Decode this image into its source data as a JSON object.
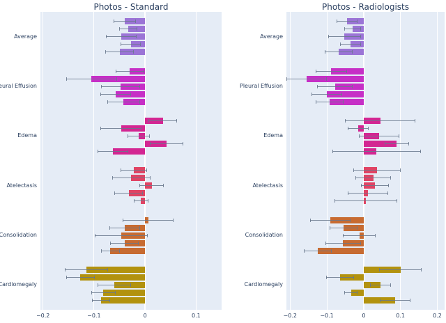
{
  "style": {
    "plot_bg": "#e5ecf6",
    "grid_color": "#ffffff",
    "text_color": "#2a3f5f",
    "error_color": "#69788c"
  },
  "chart_data": [
    {
      "type": "bar",
      "orientation": "horizontal",
      "title": "Photos - Standard",
      "xlabel": "",
      "ylabel": "",
      "xlim": [
        -0.205,
        0.15
      ],
      "grid": true,
      "legend": false,
      "xticks": [
        {
          "v": -0.2,
          "label": "−0.2"
        },
        {
          "v": -0.1,
          "label": "−0.1"
        },
        {
          "v": 0,
          "label": "0"
        },
        {
          "v": 0.1,
          "label": "0.1"
        }
      ],
      "groups": [
        {
          "label": "Average",
          "color": "#9b74d6",
          "bars": [
            {
              "value": -0.04,
              "error": 0.022
            },
            {
              "value": -0.033,
              "error": 0.018
            },
            {
              "value": -0.047,
              "error": 0.03
            },
            {
              "value": -0.028,
              "error": 0.02
            },
            {
              "value": -0.05,
              "error": 0.028
            }
          ]
        },
        {
          "label": "Pleural Effusion",
          "color": "#c62fc6",
          "bars": [
            {
              "value": -0.03,
              "error": 0.028
            },
            {
              "value": -0.105,
              "error": 0.05
            },
            {
              "value": -0.048,
              "error": 0.038
            },
            {
              "value": -0.057,
              "error": 0.03
            },
            {
              "value": -0.042,
              "error": 0.032
            }
          ]
        },
        {
          "label": "Edema",
          "color": "#d32692",
          "bars": [
            {
              "value": 0.035,
              "error": 0.028
            },
            {
              "value": -0.047,
              "error": 0.04
            },
            {
              "value": -0.012,
              "error": 0.022
            },
            {
              "value": 0.042,
              "error": 0.033
            },
            {
              "value": -0.063,
              "error": 0.03
            }
          ]
        },
        {
          "label": "Atelectasis",
          "color": "#e04364",
          "bars": [
            {
              "value": -0.022,
              "error": 0.026
            },
            {
              "value": -0.027,
              "error": 0.038
            },
            {
              "value": 0.013,
              "error": 0.024
            },
            {
              "value": -0.032,
              "error": 0.028
            },
            {
              "value": -0.008,
              "error": 0.014
            }
          ]
        },
        {
          "label": "Consolidation",
          "color": "#c76b31",
          "bars": [
            {
              "value": 0.006,
              "error": 0.05
            },
            {
              "value": -0.04,
              "error": 0.03
            },
            {
              "value": -0.047,
              "error": 0.052
            },
            {
              "value": -0.04,
              "error": 0.028
            },
            {
              "value": -0.068,
              "error": 0.018
            }
          ]
        },
        {
          "label": "Cardiomegaly",
          "color": "#b2920e",
          "bars": [
            {
              "value": -0.115,
              "error": 0.042
            },
            {
              "value": -0.127,
              "error": 0.028
            },
            {
              "value": -0.06,
              "error": 0.033
            },
            {
              "value": -0.082,
              "error": 0.024
            },
            {
              "value": -0.086,
              "error": 0.018
            }
          ]
        }
      ]
    },
    {
      "type": "bar",
      "orientation": "horizontal",
      "title": "Photos - Radiologists",
      "xlabel": "",
      "ylabel": "",
      "xlim": [
        -0.21,
        0.22
      ],
      "grid": true,
      "legend": false,
      "xticks": [
        {
          "v": -0.2,
          "label": "−0.2"
        },
        {
          "v": -0.1,
          "label": "−0.1"
        },
        {
          "v": 0,
          "label": "0"
        },
        {
          "v": 0.1,
          "label": "0.1"
        },
        {
          "v": 0.2,
          "label": "0.2"
        }
      ],
      "groups": [
        {
          "label": "Average",
          "color": "#9b74d6",
          "bars": [
            {
              "value": -0.045,
              "error": 0.028
            },
            {
              "value": -0.03,
              "error": 0.022
            },
            {
              "value": -0.052,
              "error": 0.045
            },
            {
              "value": -0.036,
              "error": 0.028
            },
            {
              "value": -0.068,
              "error": 0.038
            }
          ]
        },
        {
          "label": "Pleural Effusion",
          "color": "#c62fc6",
          "bars": [
            {
              "value": -0.088,
              "error": 0.042
            },
            {
              "value": -0.155,
              "error": 0.055
            },
            {
              "value": -0.078,
              "error": 0.048
            },
            {
              "value": -0.1,
              "error": 0.042
            },
            {
              "value": -0.092,
              "error": 0.038
            }
          ]
        },
        {
          "label": "Edema",
          "color": "#d32692",
          "bars": [
            {
              "value": 0.045,
              "error": 0.095
            },
            {
              "value": -0.015,
              "error": 0.028
            },
            {
              "value": 0.042,
              "error": 0.055
            },
            {
              "value": 0.09,
              "error": 0.033
            },
            {
              "value": 0.035,
              "error": 0.12
            }
          ]
        },
        {
          "label": "Atelectasis",
          "color": "#e04364",
          "bars": [
            {
              "value": 0.036,
              "error": 0.065
            },
            {
              "value": 0.026,
              "error": 0.048
            },
            {
              "value": 0.03,
              "error": 0.038
            },
            {
              "value": 0.012,
              "error": 0.055
            },
            {
              "value": 0.006,
              "error": 0.085
            }
          ]
        },
        {
          "label": "Consolidation",
          "color": "#c76b31",
          "bars": [
            {
              "value": -0.09,
              "error": 0.055
            },
            {
              "value": -0.055,
              "error": 0.038
            },
            {
              "value": -0.012,
              "error": 0.045
            },
            {
              "value": -0.056,
              "error": 0.048
            },
            {
              "value": -0.125,
              "error": 0.038
            }
          ]
        },
        {
          "label": "Cardiomegaly",
          "color": "#b2920e",
          "bars": [
            {
              "value": 0.1,
              "error": 0.058
            },
            {
              "value": -0.064,
              "error": 0.038
            },
            {
              "value": 0.046,
              "error": 0.028
            },
            {
              "value": -0.034,
              "error": 0.018
            },
            {
              "value": 0.086,
              "error": 0.042
            }
          ]
        }
      ]
    }
  ]
}
